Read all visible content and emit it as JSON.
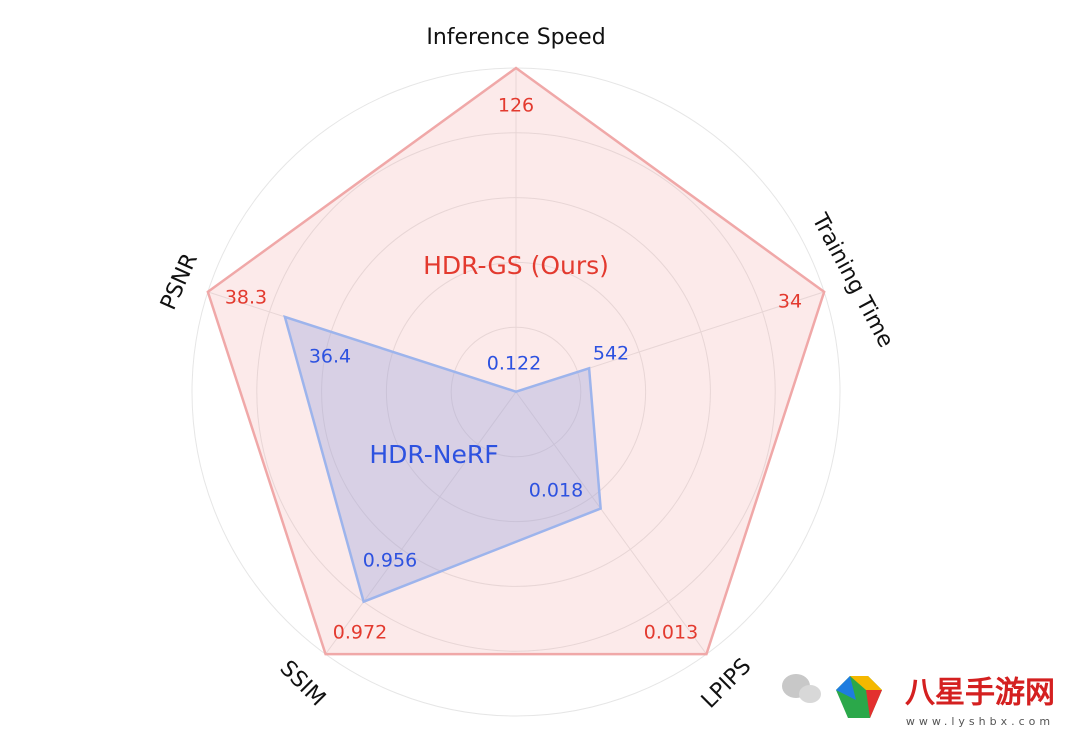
{
  "chart_data": {
    "type": "radar",
    "axes": [
      {
        "name": "Inference Speed",
        "lim": [
          0,
          126
        ]
      },
      {
        "name": "Training Time",
        "lim": [
          700,
          34
        ]
      },
      {
        "name": "LPIPS",
        "lim": [
          0.022,
          0.013
        ]
      },
      {
        "name": "SSIM",
        "lim": [
          0.892,
          0.972
        ]
      },
      {
        "name": "PSNR",
        "lim": [
          30.7,
          38.3
        ]
      }
    ],
    "series": [
      {
        "name": "HDR-GS (Ours)",
        "color": "#e33a2f",
        "fill": "rgba(240,150,150,0.2)",
        "stroke": "#f0a8a8",
        "values": [
          126,
          34,
          0.013,
          0.972,
          38.3
        ]
      },
      {
        "name": "HDR-NeRF",
        "color": "#2d52e0",
        "fill": "rgba(150,160,220,0.35)",
        "stroke": "#9db4ec",
        "values": [
          0.122,
          542,
          0.018,
          0.956,
          36.4
        ]
      }
    ],
    "grid": true
  },
  "watermark": {
    "brand": "八星手游网",
    "url": "www.lyshbx.com"
  }
}
